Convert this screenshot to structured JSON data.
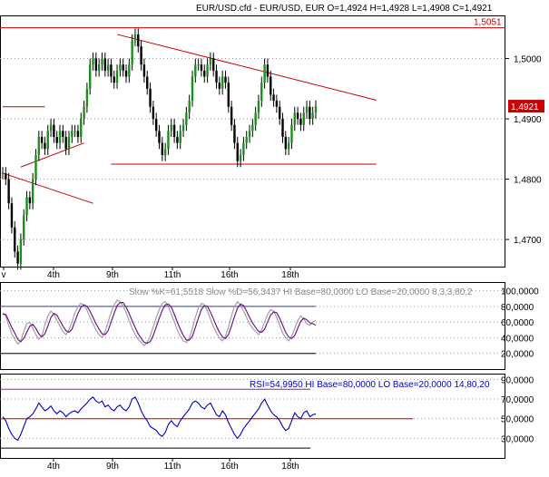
{
  "header": {
    "title": "EUR/USD.cfd - EUR/USD, EUR O=1,4924 H=1,4928 L=1,4908 C=1,4921"
  },
  "colors": {
    "price": "#000000",
    "trendline": "#cc0000",
    "up_candle": "#1a8f1a",
    "stoch_k": "#a0a0a0",
    "stoch_d": "#6a1a8a",
    "rsi": "#0000c0",
    "bands": "#3a3ab0",
    "highlight_box": "#cc0000"
  },
  "chart_data": [
    {
      "type": "line",
      "panel": "price",
      "title": "EUR/USD.cfd - EUR/USD, EUR O=1,4924 H=1,4928 L=1,4908 C=1,4921",
      "x_tick_labels": [
        "v",
        "4th",
        "9th",
        "11th",
        "16th",
        "18th"
      ],
      "y_tick_labels": [
        "1,5000",
        "1,4900",
        "1,4800",
        "1,4700"
      ],
      "ylim": [
        1.4655,
        1.507
      ],
      "grid": "dotted",
      "series": [
        {
          "values": [
            1.481,
            1.48,
            1.476,
            1.472,
            1.468,
            1.466,
            1.47,
            1.474,
            1.477,
            1.476,
            1.48,
            1.484,
            1.487,
            1.486,
            1.485,
            1.488,
            1.489,
            1.487,
            1.486,
            1.488,
            1.487,
            1.485,
            1.487,
            1.488,
            1.488,
            1.487,
            1.49,
            1.492,
            1.495,
            1.499,
            1.5,
            1.498,
            1.499,
            1.5,
            1.498,
            1.499,
            1.497,
            1.496,
            1.498,
            1.499,
            1.498,
            1.497,
            1.499,
            1.503,
            1.504,
            1.502,
            1.499,
            1.497,
            1.495,
            1.492,
            1.49,
            1.488,
            1.486,
            1.484,
            1.485,
            1.488,
            1.489,
            1.487,
            1.486,
            1.488,
            1.489,
            1.491,
            1.493,
            1.497,
            1.499,
            1.499,
            1.498,
            1.497,
            1.499,
            1.5,
            1.498,
            1.496,
            1.495,
            1.497,
            1.496,
            1.492,
            1.489,
            1.486,
            1.483,
            1.484,
            1.486,
            1.487,
            1.488,
            1.489,
            1.491,
            1.493,
            1.496,
            1.499,
            1.497,
            1.494,
            1.493,
            1.492,
            1.49,
            1.487,
            1.485,
            1.486,
            1.489,
            1.491,
            1.49,
            1.489,
            1.491,
            1.492,
            1.49,
            1.491,
            1.4921
          ]
        }
      ],
      "annotations": [
        {
          "label": "1,5051",
          "y": 1.5051,
          "kind": "horizontal-line"
        },
        {
          "label": "1,4921",
          "y": 1.4921,
          "kind": "last-price"
        }
      ],
      "trendlines": [
        {
          "x": [
            0,
            30
          ],
          "y": [
            1.481,
            1.476
          ]
        },
        {
          "x": [
            0,
            14
          ],
          "y": [
            1.492,
            1.492
          ]
        },
        {
          "x": [
            6,
            27
          ],
          "y": [
            1.482,
            1.486
          ]
        },
        {
          "x": [
            38,
            103
          ],
          "y": [
            1.504,
            1.494
          ]
        },
        {
          "x": [
            36,
            103
          ],
          "y": [
            1.4825,
            1.4825
          ]
        }
      ]
    },
    {
      "type": "line",
      "panel": "stochastic",
      "title": "Slow %K=61,5518 Slow %D=56,3437 HI Base=80,0000 LO Base=20,0000 8,3,3,80,2",
      "y_tick_labels": [
        "100,0000",
        "80,0000",
        "60,0000",
        "40,0000",
        "20,0000"
      ],
      "ylim": [
        0,
        110
      ],
      "series": [
        {
          "values": [
            72,
            68,
            56,
            45,
            38,
            32,
            36,
            48,
            58,
            60,
            52,
            44,
            38,
            42,
            56,
            68,
            74,
            70,
            62,
            55,
            48,
            44,
            50,
            60,
            72,
            80,
            84,
            82,
            75,
            66,
            58,
            50,
            44,
            40,
            48,
            60,
            72,
            82,
            88,
            86,
            80,
            72,
            62,
            52,
            44,
            38,
            34,
            30,
            34,
            42,
            54,
            66,
            76,
            84,
            86,
            80,
            70,
            60,
            50,
            42,
            36,
            34,
            40,
            52,
            66,
            78,
            84,
            82,
            74,
            64,
            54,
            46,
            40,
            36,
            42,
            54,
            68,
            80,
            86,
            82,
            74,
            66,
            58,
            52,
            48,
            44,
            50,
            60,
            70,
            76,
            74,
            66,
            56,
            46,
            40,
            36,
            42,
            52,
            62,
            68,
            64,
            58,
            56,
            60,
            62
          ]
        },
        {
          "values": [
            70,
            70,
            62,
            53,
            46,
            38,
            35,
            39,
            47,
            55,
            57,
            52,
            45,
            41,
            45,
            55,
            66,
            71,
            69,
            62,
            55,
            49,
            47,
            51,
            61,
            71,
            79,
            82,
            80,
            74,
            66,
            58,
            51,
            45,
            44,
            49,
            60,
            71,
            81,
            85,
            85,
            79,
            71,
            62,
            53,
            45,
            39,
            34,
            33,
            35,
            43,
            54,
            65,
            75,
            82,
            83,
            79,
            70,
            60,
            51,
            43,
            37,
            37,
            42,
            53,
            65,
            76,
            81,
            80,
            73,
            64,
            55,
            47,
            41,
            39,
            44,
            55,
            67,
            78,
            83,
            81,
            74,
            66,
            59,
            53,
            48,
            47,
            51,
            60,
            69,
            73,
            72,
            65,
            56,
            47,
            41,
            39,
            43,
            52,
            61,
            65,
            63,
            59,
            58,
            56
          ]
        }
      ],
      "bands": [
        80,
        20
      ]
    },
    {
      "type": "line",
      "panel": "rsi",
      "title": "RSI=54,9950 HI Base=80,0000 LO Base=20,0000  14,80,20",
      "x_tick_labels": [
        "4th",
        "9th",
        "11th",
        "16th",
        "18th"
      ],
      "y_tick_labels": [
        "90,0000",
        "70,0000",
        "50,0000",
        "30,0000"
      ],
      "ylim": [
        10,
        95
      ],
      "series": [
        {
          "values": [
            52,
            48,
            40,
            34,
            30,
            28,
            34,
            42,
            50,
            52,
            55,
            60,
            66,
            62,
            58,
            60,
            63,
            58,
            55,
            58,
            56,
            52,
            55,
            57,
            58,
            56,
            60,
            63,
            66,
            70,
            72,
            68,
            66,
            68,
            62,
            64,
            60,
            58,
            62,
            64,
            60,
            58,
            62,
            70,
            72,
            66,
            58,
            52,
            48,
            42,
            40,
            38,
            34,
            32,
            36,
            44,
            48,
            44,
            42,
            48,
            52,
            56,
            60,
            66,
            68,
            66,
            62,
            60,
            64,
            66,
            60,
            54,
            52,
            58,
            54,
            46,
            40,
            34,
            30,
            34,
            40,
            44,
            48,
            52,
            56,
            60,
            66,
            70,
            64,
            58,
            54,
            52,
            48,
            42,
            38,
            40,
            48,
            56,
            52,
            50,
            56,
            58,
            52,
            54,
            55
          ]
        }
      ],
      "bands": [
        80,
        20,
        50
      ]
    }
  ]
}
